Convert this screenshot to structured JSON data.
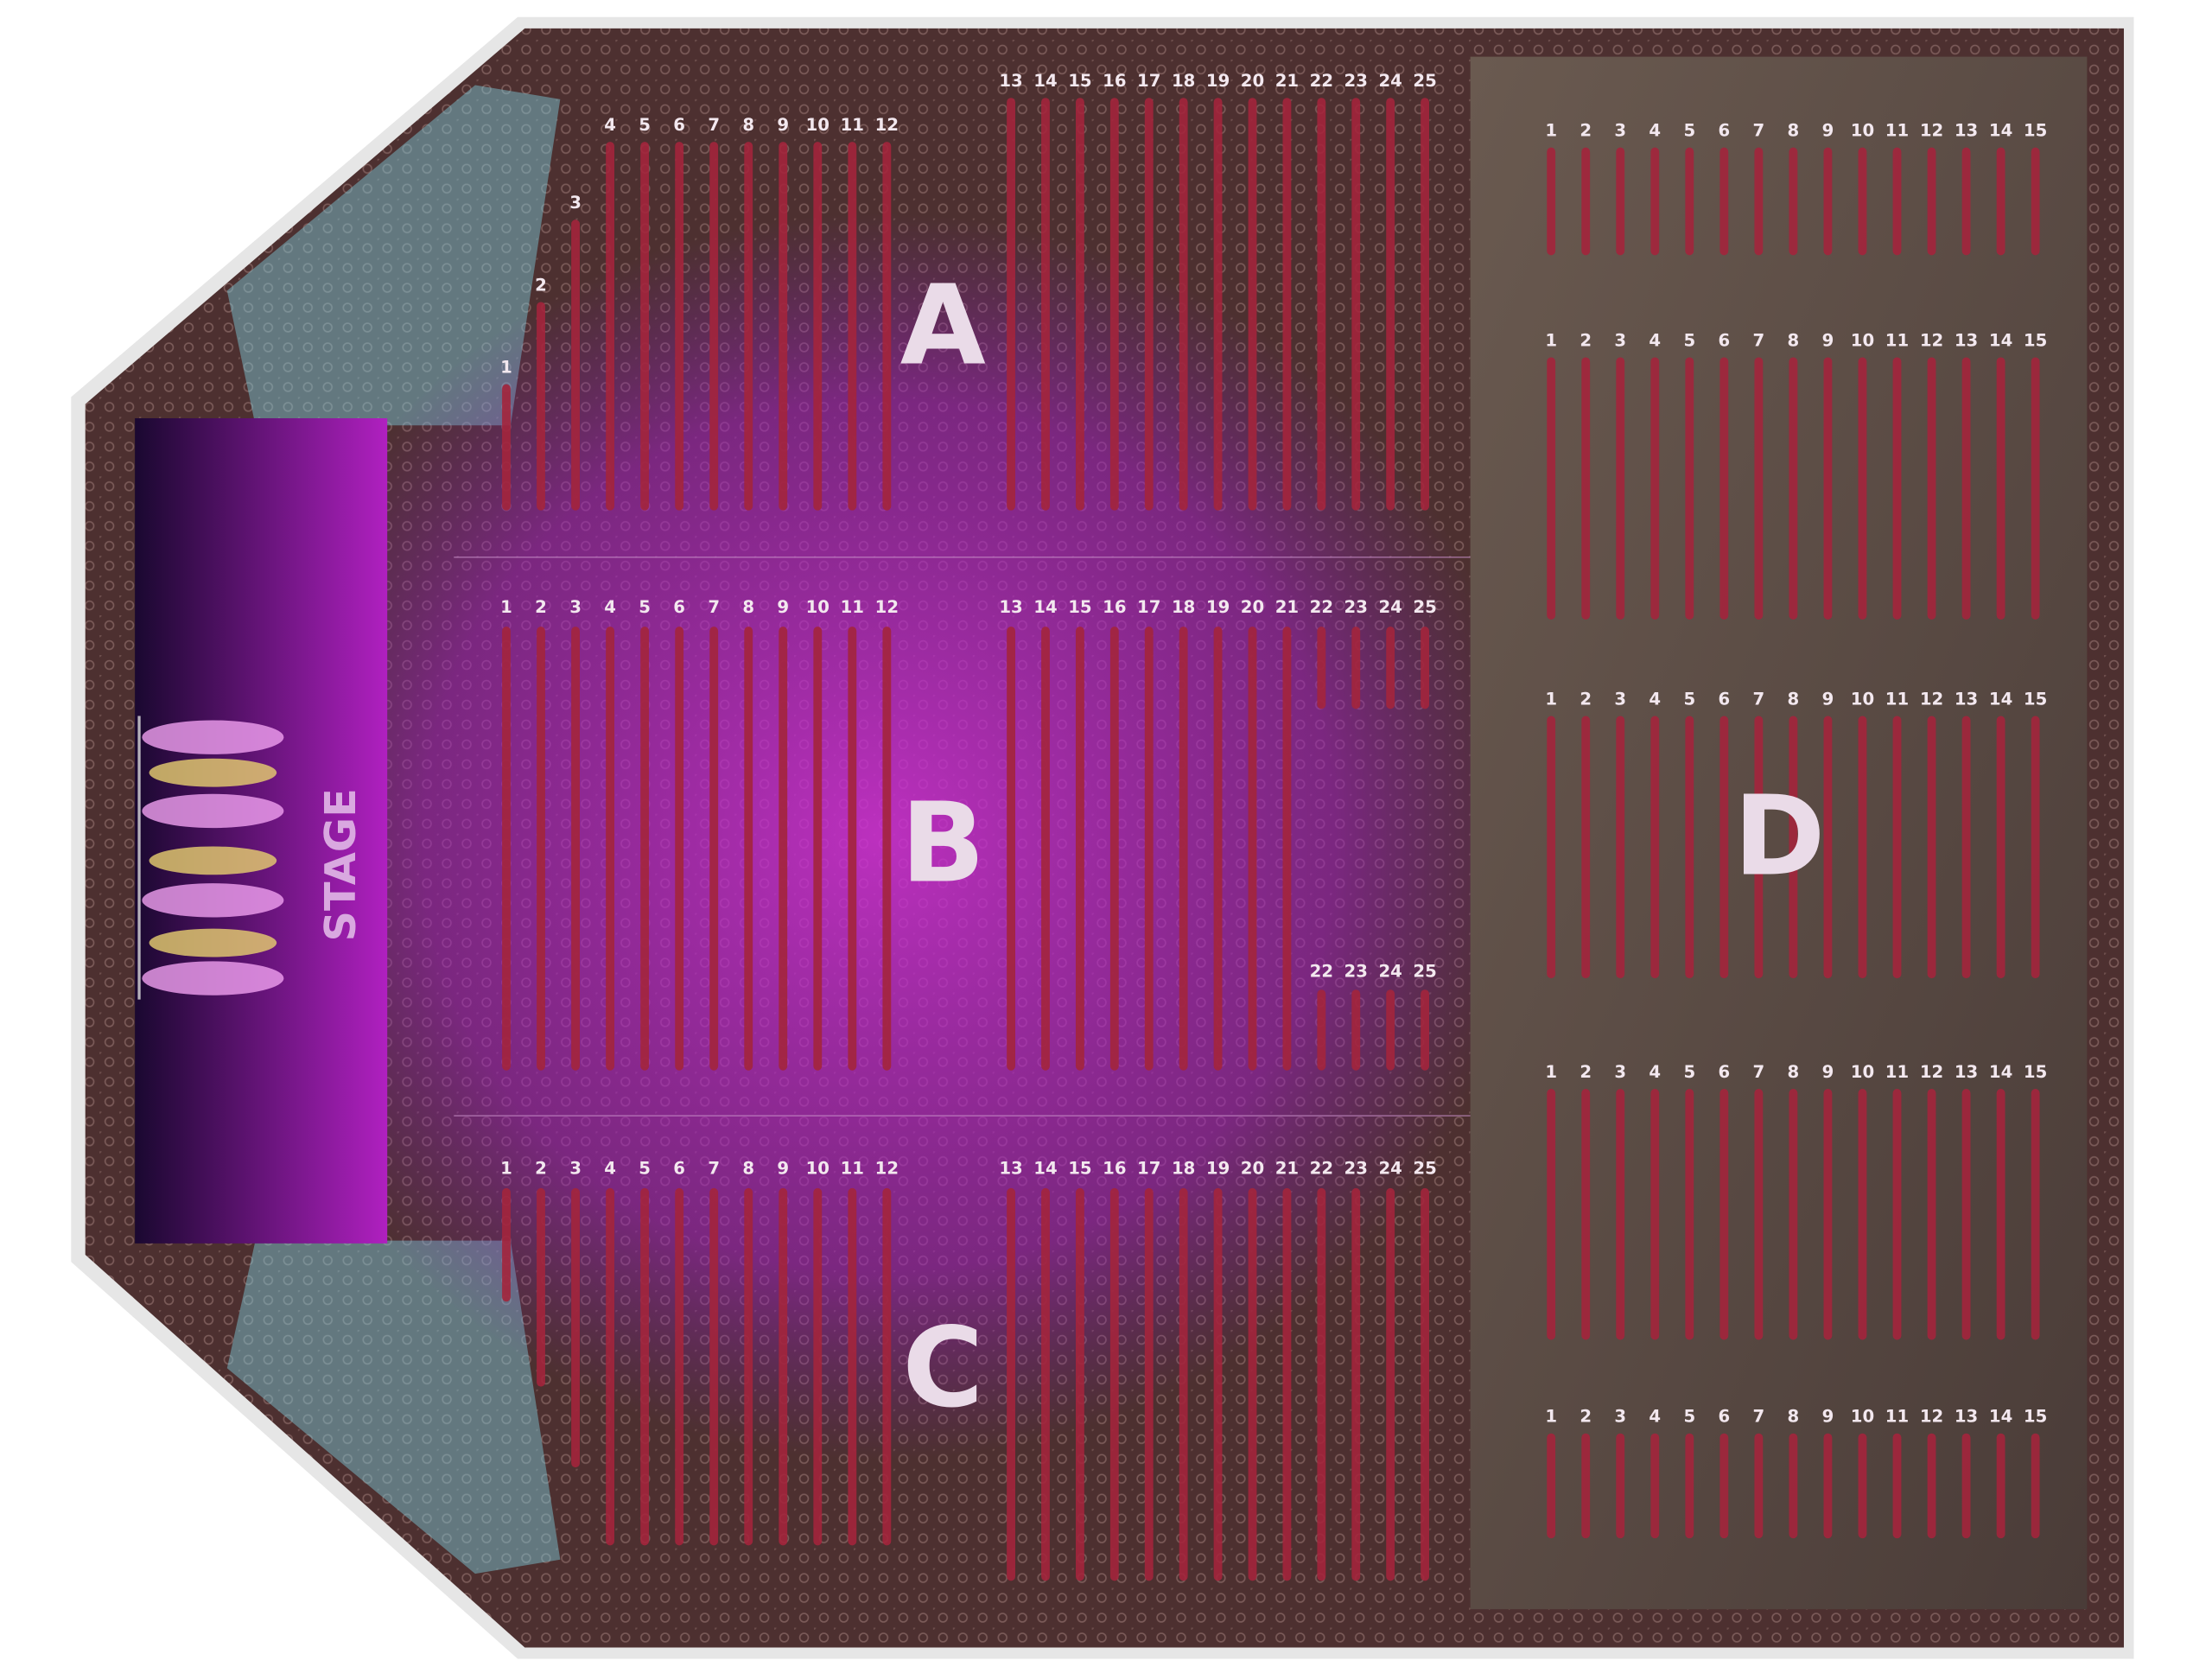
{
  "stage": {
    "label": "STAGE"
  },
  "sections": [
    {
      "label": "A",
      "rows": [
        1,
        2,
        3,
        4,
        5,
        6,
        7,
        8,
        9,
        10,
        11,
        12,
        13,
        14,
        15,
        16,
        17,
        18,
        19,
        20,
        21,
        22,
        23,
        24,
        25
      ]
    },
    {
      "label": "B",
      "rows": [
        1,
        2,
        3,
        4,
        5,
        6,
        7,
        8,
        9,
        10,
        11,
        12,
        13,
        14,
        15,
        16,
        17,
        18,
        19,
        20,
        21,
        22,
        23,
        24,
        25
      ],
      "rear_rows": [
        22,
        23,
        24,
        25
      ]
    },
    {
      "label": "C",
      "rows": [
        1,
        2,
        3,
        4,
        5,
        6,
        7,
        8,
        9,
        10,
        11,
        12,
        13,
        14,
        15,
        16,
        17,
        18,
        19,
        20,
        21,
        22,
        23,
        24,
        25
      ]
    },
    {
      "label": "D",
      "blocks": [
        [
          1,
          2,
          3,
          4,
          5,
          6,
          7,
          8,
          9,
          10,
          11,
          12,
          13,
          14,
          15
        ],
        [
          1,
          2,
          3,
          4,
          5,
          6,
          7,
          8,
          9,
          10,
          11,
          12,
          13,
          14,
          15
        ],
        [
          1,
          2,
          3,
          4,
          5,
          6,
          7,
          8,
          9,
          10,
          11,
          12,
          13,
          14,
          15
        ],
        [
          1,
          2,
          3,
          4,
          5,
          6,
          7,
          8,
          9,
          10,
          11,
          12,
          13,
          14,
          15
        ],
        [
          1,
          2,
          3,
          4,
          5,
          6,
          7,
          8,
          9,
          10,
          11,
          12,
          13,
          14,
          15
        ]
      ]
    }
  ]
}
